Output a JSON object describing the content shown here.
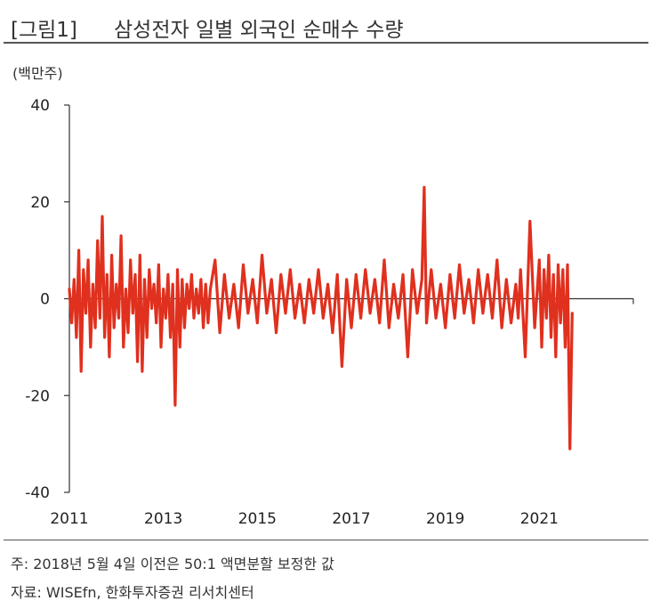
{
  "header": {
    "figure_label": "[그림1]",
    "title": "삼성전자 일별 외국인 순매수 수량"
  },
  "unit_label": "(백만주)",
  "footer": {
    "note": "주: 2018년 5월 4일 이전은 50:1 액면분할 보정한 값",
    "source": "자료: WISEfn, 한화투자증권 리서치센터"
  },
  "colors": {
    "series": "#e0301e",
    "axis": "#333333"
  },
  "chart_data": {
    "type": "line",
    "title": "삼성전자 일별 외국인 순매수 수량",
    "ylabel": "(백만주)",
    "xlabel": "",
    "ylim": [
      -40,
      40
    ],
    "xlim": [
      2011,
      2023
    ],
    "y_ticks": [
      40,
      20,
      0,
      -20,
      -40
    ],
    "x_ticks": [
      2011,
      2013,
      2015,
      2017,
      2019,
      2021
    ],
    "grid": false,
    "series": [
      {
        "x": [
          2011.0,
          2011.05,
          2011.1,
          2011.15,
          2011.2,
          2011.25,
          2011.3,
          2011.35,
          2011.4,
          2011.45,
          2011.5,
          2011.55,
          2011.6,
          2011.65,
          2011.7,
          2011.75,
          2011.8,
          2011.85,
          2011.9,
          2011.95,
          2012.0,
          2012.05,
          2012.1,
          2012.15,
          2012.2,
          2012.25,
          2012.3,
          2012.35,
          2012.4,
          2012.45,
          2012.5,
          2012.55,
          2012.6,
          2012.65,
          2012.7,
          2012.75,
          2012.8,
          2012.85,
          2012.9,
          2012.95,
          2013.0,
          2013.05,
          2013.1,
          2013.15,
          2013.2,
          2013.25,
          2013.3,
          2013.35,
          2013.4,
          2013.45,
          2013.5,
          2013.55,
          2013.6,
          2013.65,
          2013.7,
          2013.75,
          2013.8,
          2013.85,
          2013.9,
          2013.95,
          2014.0,
          2014.1,
          2014.2,
          2014.3,
          2014.4,
          2014.5,
          2014.6,
          2014.7,
          2014.8,
          2014.9,
          2015.0,
          2015.1,
          2015.2,
          2015.3,
          2015.4,
          2015.5,
          2015.6,
          2015.7,
          2015.8,
          2015.9,
          2016.0,
          2016.1,
          2016.2,
          2016.3,
          2016.4,
          2016.5,
          2016.6,
          2016.7,
          2016.8,
          2016.9,
          2017.0,
          2017.1,
          2017.2,
          2017.3,
          2017.4,
          2017.5,
          2017.6,
          2017.7,
          2017.8,
          2017.9,
          2018.0,
          2018.1,
          2018.2,
          2018.3,
          2018.4,
          2018.5,
          2018.55,
          2018.6,
          2018.7,
          2018.8,
          2018.9,
          2019.0,
          2019.1,
          2019.2,
          2019.3,
          2019.4,
          2019.5,
          2019.6,
          2019.7,
          2019.8,
          2019.9,
          2020.0,
          2020.1,
          2020.2,
          2020.3,
          2020.4,
          2020.5,
          2020.55,
          2020.6,
          2020.7,
          2020.8,
          2020.9,
          2021.0,
          2021.05,
          2021.1,
          2021.15,
          2021.2,
          2021.25,
          2021.3,
          2021.35,
          2021.4,
          2021.45,
          2021.5,
          2021.55,
          2021.6,
          2021.65,
          2021.7
        ],
        "values": [
          2,
          -5,
          4,
          -8,
          10,
          -15,
          6,
          -3,
          8,
          -10,
          3,
          -6,
          12,
          -4,
          17,
          -8,
          5,
          -12,
          9,
          -6,
          3,
          -4,
          13,
          -10,
          2,
          -7,
          8,
          -3,
          5,
          -13,
          9,
          -15,
          4,
          -8,
          6,
          -2,
          3,
          -5,
          7,
          -10,
          2,
          -4,
          5,
          -8,
          3,
          -22,
          6,
          -10,
          4,
          -6,
          3,
          -2,
          5,
          -4,
          2,
          -3,
          4,
          -6,
          3,
          -5,
          2,
          8,
          -7,
          5,
          -4,
          3,
          -6,
          7,
          -3,
          4,
          -5,
          9,
          -3,
          4,
          -7,
          5,
          -3,
          6,
          -4,
          3,
          -5,
          4,
          -3,
          6,
          -4,
          3,
          -7,
          5,
          -14,
          4,
          -6,
          5,
          -4,
          6,
          -3,
          4,
          -5,
          8,
          -6,
          3,
          -4,
          5,
          -12,
          6,
          -3,
          4,
          23,
          -5,
          6,
          -4,
          3,
          -6,
          5,
          -4,
          7,
          -3,
          4,
          -5,
          6,
          -3,
          5,
          -4,
          8,
          -6,
          4,
          -5,
          3,
          -4,
          6,
          -12,
          16,
          -6,
          8,
          -10,
          6,
          -4,
          9,
          -8,
          5,
          -12,
          7,
          -5,
          6,
          -10,
          7,
          -31,
          -3
        ]
      }
    ]
  }
}
